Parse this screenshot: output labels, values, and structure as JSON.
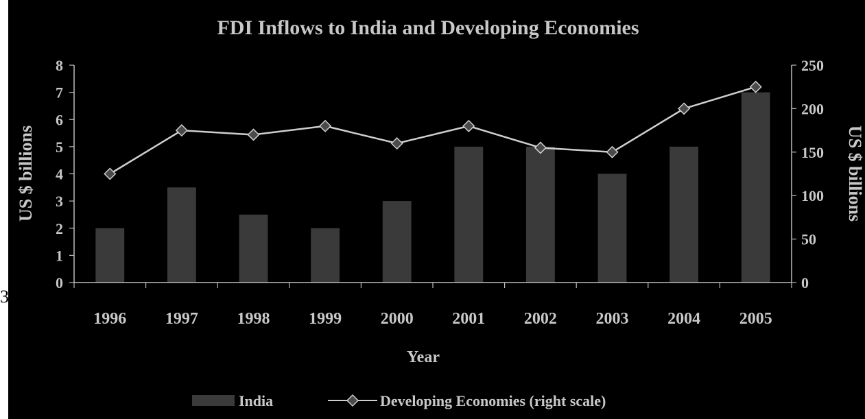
{
  "stray_char": "3",
  "colors": {
    "background": "#000000",
    "text": "#c8c8c8",
    "axis": "#bdbdbd",
    "bar": "#3a3a3a",
    "line": "#cfcfcf",
    "marker": "#4a4a4a"
  },
  "chart_data": {
    "type": "bar",
    "title": "FDI Inflows to India and Developing Economies",
    "xlabel": "Year",
    "ylabel": "US $ billions",
    "ylabel_right": "US $ billions",
    "categories": [
      "1996",
      "1997",
      "1998",
      "1999",
      "2000",
      "2001",
      "2002",
      "2003",
      "2004",
      "2005"
    ],
    "ylim": [
      0,
      8
    ],
    "yticks": [
      "0",
      "1",
      "2",
      "3",
      "4",
      "5",
      "6",
      "7",
      "8"
    ],
    "ylim_right": [
      0,
      250
    ],
    "yticks_right": [
      "0",
      "50",
      "100",
      "150",
      "200",
      "250"
    ],
    "series": [
      {
        "name": "India",
        "type": "bar",
        "axis": "left",
        "values": [
          2,
          3.5,
          2.5,
          2,
          3,
          5,
          5,
          4,
          5,
          7
        ]
      },
      {
        "name": "Developing Economies (right scale)",
        "type": "line",
        "axis": "right",
        "values": [
          125,
          175,
          170,
          180,
          160,
          180,
          155,
          150,
          200,
          225
        ]
      }
    ],
    "legend_position": "bottom",
    "grid": false
  }
}
